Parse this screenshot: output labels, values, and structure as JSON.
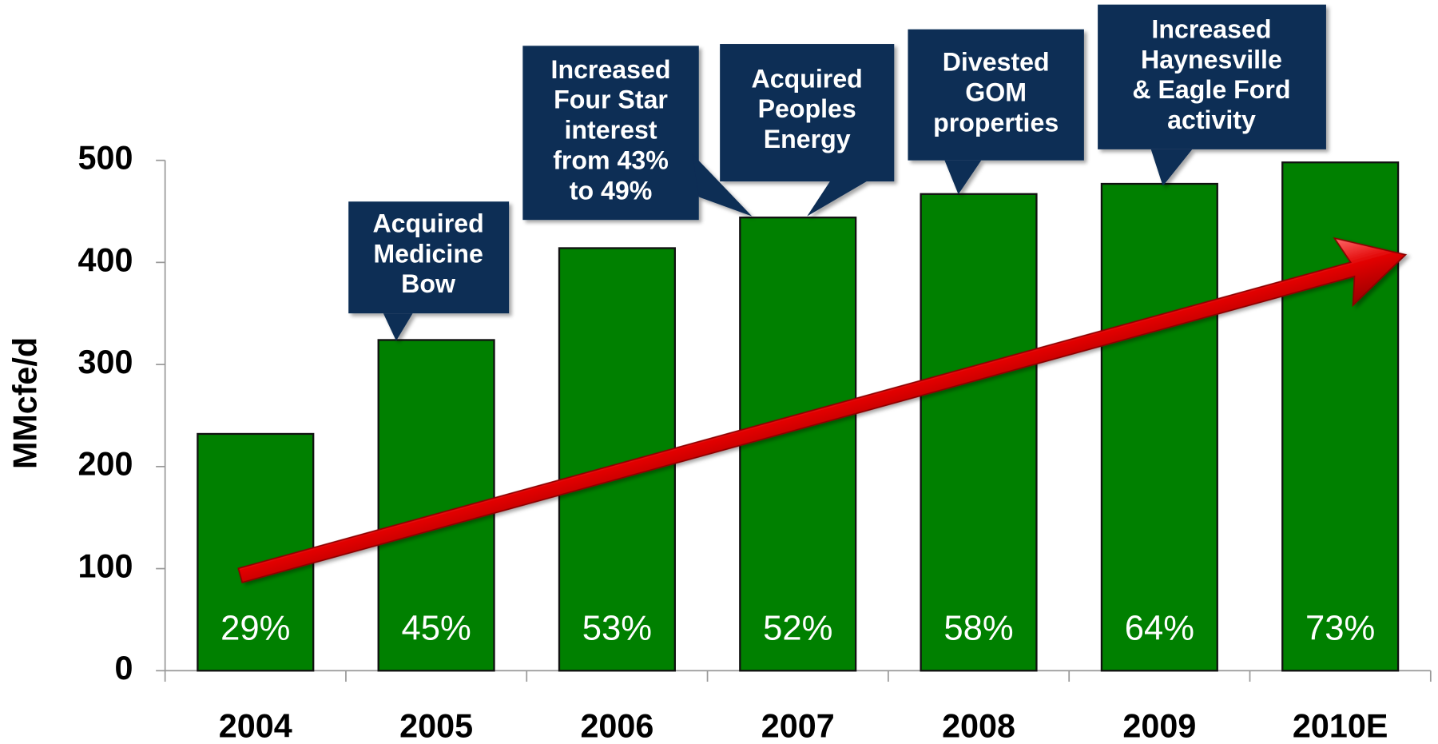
{
  "chart_data": {
    "type": "bar",
    "ylabel": "MMcfe/d",
    "categories": [
      "2004",
      "2005",
      "2006",
      "2007",
      "2008",
      "2009",
      "2010E"
    ],
    "values": [
      232,
      324,
      414,
      444,
      467,
      477,
      498
    ],
    "color": "#008000",
    "ylim": [
      0,
      500
    ],
    "yticks": [
      0,
      100,
      200,
      300,
      400,
      500
    ],
    "percent_labels": {
      "values": [
        29,
        45,
        53,
        52,
        58,
        64,
        73
      ],
      "value_labels": [
        "29%",
        "45%",
        "53%",
        "52%",
        "58%",
        "64%",
        "73%"
      ]
    },
    "callouts": [
      {
        "lines": [
          "Acquired",
          "Medicine",
          "Bow"
        ]
      },
      {
        "lines": [
          "Increased",
          "Four  Star",
          "interest",
          "from 43%",
          "to 49%"
        ]
      },
      {
        "lines": [
          "Acquired",
          "Peoples",
          "Energy"
        ]
      },
      {
        "lines": [
          "Divested",
          "GOM",
          "properties"
        ]
      },
      {
        "lines": [
          "Increased",
          "Haynesville",
          "& Eagle Ford",
          "activity"
        ]
      }
    ]
  }
}
